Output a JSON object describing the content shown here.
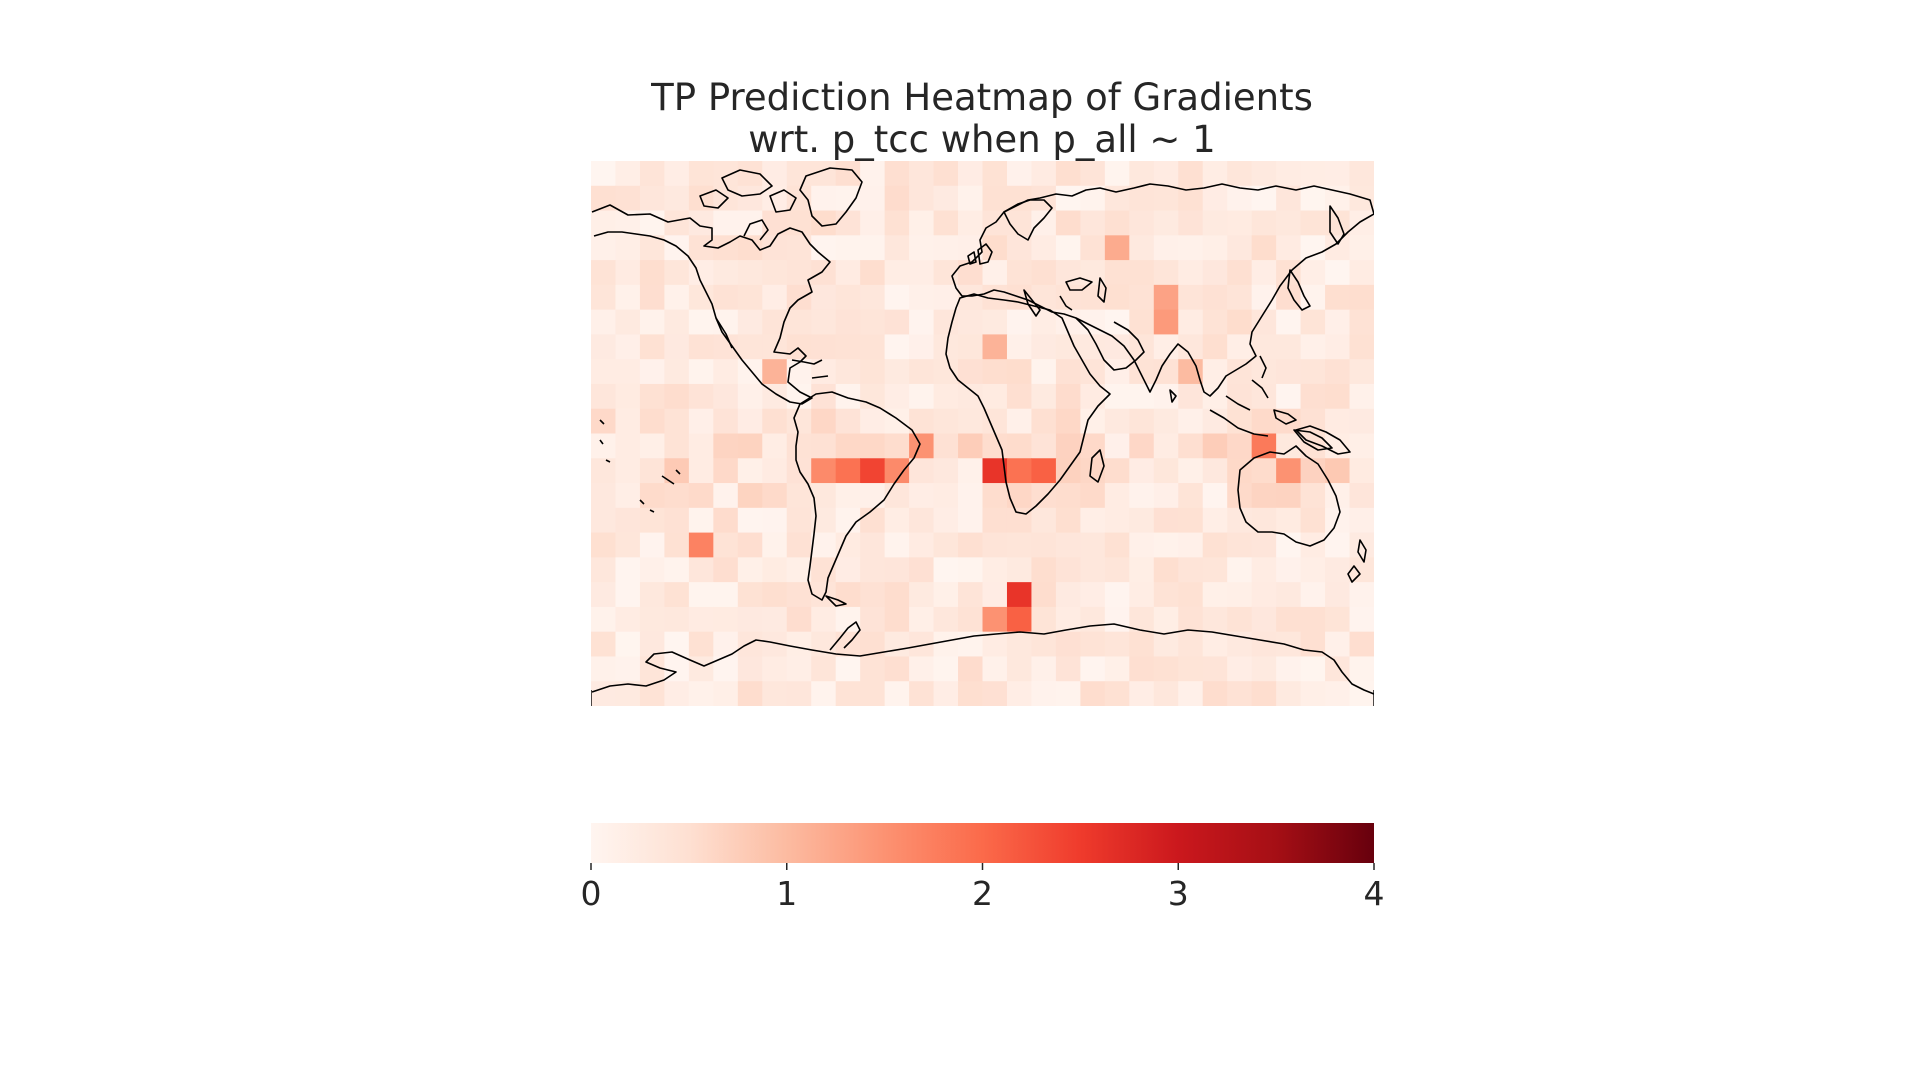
{
  "chart_data": {
    "type": "heatmap",
    "title": [
      "TP Prediction Heatmap of Gradients",
      "wrt. p_tcc when p_all ~ 1"
    ],
    "xlabel": "",
    "ylabel": "",
    "colormap": "Reds",
    "colormap_stops": [
      "#fff5f0",
      "#fee0d2",
      "#fcbba1",
      "#fc9272",
      "#fb6a4a",
      "#ef3b2c",
      "#cb181d",
      "#a50f15",
      "#67000d"
    ],
    "value_range": [
      0,
      4
    ],
    "grid": false,
    "background_map": "world coastlines (equirectangular)",
    "grid_shape": {
      "rows": 22,
      "cols": 32
    },
    "hotspots": [
      {
        "lon": -56,
        "lat": -12,
        "value": 2.4
      },
      {
        "lon": -52,
        "lat": -16,
        "value": 2.2
      },
      {
        "lon": -60,
        "lat": -16,
        "value": 1.9
      },
      {
        "lon": -64,
        "lat": -12,
        "value": 1.7
      },
      {
        "lon": -68,
        "lat": -12,
        "value": 1.6
      },
      {
        "lon": -40,
        "lat": -12,
        "value": 1.6
      },
      {
        "lon": -28,
        "lat": -8,
        "value": 1.5
      },
      {
        "lon": -24,
        "lat": -8,
        "value": 1.5
      },
      {
        "lon": 8,
        "lat": -12,
        "value": 2.6
      },
      {
        "lon": 4,
        "lat": -12,
        "value": 1.9
      },
      {
        "lon": 0,
        "lat": -12,
        "value": 1.6
      },
      {
        "lon": 16,
        "lat": -12,
        "value": 1.9
      },
      {
        "lon": 24,
        "lat": -12,
        "value": 2.1
      },
      {
        "lon": 28,
        "lat": -12,
        "value": 2.0
      },
      {
        "lon": 32,
        "lat": -12,
        "value": 1.9
      },
      {
        "lon": 20,
        "lat": -56,
        "value": 2.6
      },
      {
        "lon": 16,
        "lat": -60,
        "value": 2.1
      },
      {
        "lon": 12,
        "lat": -60,
        "value": 1.7
      },
      {
        "lon": 8,
        "lat": -60,
        "value": 1.5
      },
      {
        "lon": 132,
        "lat": -8,
        "value": 1.8
      },
      {
        "lon": 136,
        "lat": -12,
        "value": 1.5
      },
      {
        "lon": -132,
        "lat": -40,
        "value": 1.7
      },
      {
        "lon": 84,
        "lat": 36,
        "value": 1.4
      },
      {
        "lon": 88,
        "lat": 44,
        "value": 1.3
      },
      {
        "lon": 64,
        "lat": 64,
        "value": 1.2
      },
      {
        "lon": -100,
        "lat": 24,
        "value": 1.1
      },
      {
        "lon": 8,
        "lat": 28,
        "value": 1.1
      },
      {
        "lon": 100,
        "lat": 20,
        "value": 1.0
      }
    ],
    "colorbar": {
      "orientation": "horizontal",
      "ticks": [
        "0",
        "1",
        "2",
        "3",
        "4"
      ],
      "tick_values": [
        0,
        1,
        2,
        3,
        4
      ]
    }
  }
}
